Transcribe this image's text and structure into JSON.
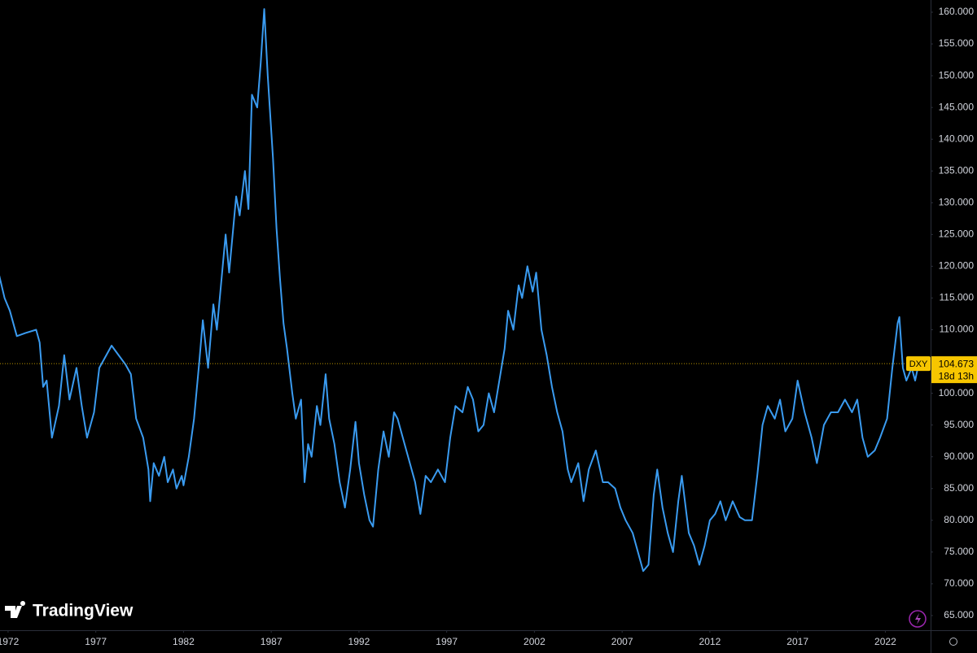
{
  "chart_data": {
    "type": "line",
    "symbol": "DXY",
    "brand": "TradingView",
    "x": [
      1971.5,
      1971.8,
      1972.1,
      1972.5,
      1973.0,
      1973.6,
      1973.8,
      1974.0,
      1974.2,
      1974.5,
      1974.9,
      1975.2,
      1975.5,
      1975.9,
      1976.2,
      1976.5,
      1976.9,
      1977.2,
      1977.6,
      1977.9,
      1978.3,
      1978.7,
      1979.0,
      1979.3,
      1979.7,
      1980.0,
      1980.1,
      1980.3,
      1980.6,
      1980.9,
      1981.1,
      1981.4,
      1981.6,
      1981.9,
      1982.0,
      1982.3,
      1982.6,
      1982.9,
      1983.1,
      1983.4,
      1983.7,
      1983.9,
      1984.2,
      1984.4,
      1984.6,
      1984.9,
      1985.0,
      1985.2,
      1985.5,
      1985.7,
      1985.9,
      1986.2,
      1986.4,
      1986.6,
      1986.8,
      1987.1,
      1987.3,
      1987.5,
      1987.7,
      1987.9,
      1988.2,
      1988.4,
      1988.7,
      1988.9,
      1989.1,
      1989.3,
      1989.6,
      1989.8,
      1990.1,
      1990.3,
      1990.6,
      1990.9,
      1991.2,
      1991.5,
      1991.8,
      1992.0,
      1992.3,
      1992.6,
      1992.8,
      1993.1,
      1993.4,
      1993.7,
      1994.0,
      1994.2,
      1994.6,
      1994.9,
      1995.2,
      1995.5,
      1995.8,
      1996.1,
      1996.5,
      1996.9,
      1997.2,
      1997.5,
      1997.9,
      1998.2,
      1998.5,
      1998.8,
      1999.1,
      1999.4,
      1999.7,
      2000.0,
      2000.3,
      2000.5,
      2000.8,
      2001.1,
      2001.3,
      2001.6,
      2001.9,
      2002.1,
      2002.4,
      2002.7,
      2003.0,
      2003.3,
      2003.6,
      2003.9,
      2004.1,
      2004.5,
      2004.8,
      2005.1,
      2005.5,
      2005.9,
      2006.2,
      2006.6,
      2006.9,
      2007.2,
      2007.6,
      2007.9,
      2008.2,
      2008.5,
      2008.8,
      2009.0,
      2009.3,
      2009.6,
      2009.9,
      2010.2,
      2010.4,
      2010.8,
      2011.1,
      2011.4,
      2011.7,
      2012.0,
      2012.3,
      2012.6,
      2012.9,
      2013.3,
      2013.7,
      2014.0,
      2014.4,
      2014.7,
      2015.0,
      2015.3,
      2015.7,
      2016.0,
      2016.3,
      2016.7,
      2017.0,
      2017.4,
      2017.8,
      2018.1,
      2018.5,
      2018.9,
      2019.3,
      2019.7,
      2020.1,
      2020.4,
      2020.7,
      2021.0,
      2021.4,
      2021.7,
      2022.1,
      2022.4,
      2022.7,
      2022.8,
      2023.0,
      2023.2,
      2023.5,
      2023.7,
      2023.9
    ],
    "series": [
      {
        "name": "DXY",
        "color": "#3a9bf0",
        "values": [
          118.5,
          115,
          113,
          109,
          109.5,
          110,
          108,
          101,
          102,
          93,
          98,
          106,
          99,
          104,
          98,
          93,
          97,
          104,
          106,
          107.5,
          106,
          104.5,
          103,
          96,
          93,
          88,
          83,
          89,
          87,
          90,
          86,
          88,
          85,
          87,
          85.5,
          90,
          96,
          105,
          111.5,
          104,
          114,
          110,
          119,
          125,
          119,
          128,
          131,
          128,
          135,
          129,
          147,
          145,
          152,
          160.5,
          150,
          137,
          126,
          118,
          111,
          107,
          100,
          96,
          99,
          86,
          92,
          90,
          98,
          95,
          103,
          96,
          92,
          86,
          82,
          88,
          95.5,
          89,
          84,
          80,
          79,
          88,
          94,
          90,
          97,
          96,
          92,
          89,
          86,
          81,
          87,
          86,
          88,
          86,
          93,
          98,
          97,
          101,
          99,
          94,
          95,
          100,
          97,
          102,
          107,
          113,
          110,
          117,
          115,
          120,
          116,
          119,
          110,
          106,
          101,
          97,
          94,
          88,
          86,
          89,
          83,
          88,
          91,
          86,
          86,
          85,
          82,
          80,
          78,
          75,
          72,
          73,
          84,
          88,
          82,
          78,
          75,
          83,
          87,
          78,
          76,
          73,
          76,
          80,
          81,
          83,
          80,
          83,
          80.5,
          80,
          80,
          87,
          95,
          98,
          96,
          99,
          94,
          96,
          102,
          97,
          93,
          89,
          95,
          97,
          97,
          99,
          97,
          99,
          93,
          90,
          91,
          93,
          96,
          104,
          111,
          112,
          104,
          102,
          104,
          102,
          104.673
        ]
      }
    ],
    "last_value": 104.673,
    "countdown": "18d 13h",
    "xlim": [
      1971.54,
      2024.58
    ],
    "xticks": [
      1972,
      1977,
      1982,
      1987,
      1992,
      1997,
      2002,
      2007,
      2012,
      2017,
      2022
    ],
    "ylim": [
      62.69,
      161.92
    ],
    "yticks": [
      {
        "value": 65,
        "label": "65.000"
      },
      {
        "value": 70,
        "label": "70.000"
      },
      {
        "value": 75,
        "label": "75.000"
      },
      {
        "value": 80,
        "label": "80.000"
      },
      {
        "value": 85,
        "label": "85.000"
      },
      {
        "value": 90,
        "label": "90.000"
      },
      {
        "value": 95,
        "label": "95.000"
      },
      {
        "value": 100,
        "label": "100.000"
      },
      {
        "value": 105,
        "label": "105.000"
      },
      {
        "value": 110,
        "label": "110.000"
      },
      {
        "value": 115,
        "label": "115.000"
      },
      {
        "value": 120,
        "label": "120.000"
      },
      {
        "value": 125,
        "label": "125.000"
      },
      {
        "value": 130,
        "label": "130.000"
      },
      {
        "value": 135,
        "label": "135.000"
      },
      {
        "value": 140,
        "label": "140.000"
      },
      {
        "value": 145,
        "label": "145.000"
      },
      {
        "value": 150,
        "label": "150.000"
      },
      {
        "value": 155,
        "label": "155.000"
      },
      {
        "value": 160,
        "label": "160.000"
      }
    ],
    "grid": false
  }
}
